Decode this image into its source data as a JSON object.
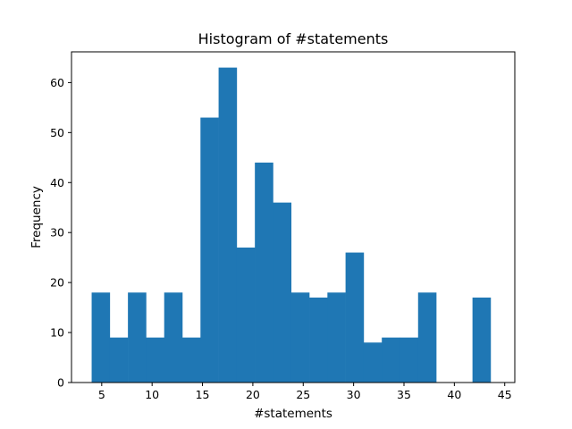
{
  "chart_data": {
    "type": "bar",
    "title": "Histogram of #statements",
    "xlabel": "#statements",
    "ylabel": "Frequency",
    "xlim": [
      2.0,
      46.0
    ],
    "ylim": [
      0,
      66.15
    ],
    "xticks": [
      5,
      10,
      15,
      20,
      25,
      30,
      35,
      40,
      45
    ],
    "yticks": [
      0,
      10,
      20,
      30,
      40,
      50,
      60
    ],
    "bin_edges": [
      4,
      5.8,
      7.6,
      9.4,
      11.2,
      13,
      14.8,
      16.6,
      18.4,
      20.2,
      22,
      23.8,
      25.6,
      27.4,
      29.2,
      31,
      32.8,
      34.6,
      36.4,
      38.2,
      40,
      41.8,
      43.6
    ],
    "values": [
      18,
      9,
      18,
      9,
      18,
      9,
      53,
      63,
      27,
      44,
      36,
      18,
      17,
      18,
      26,
      8,
      9,
      9,
      18,
      0,
      0,
      17
    ],
    "bar_color": "#1f77b4",
    "grid": false
  }
}
